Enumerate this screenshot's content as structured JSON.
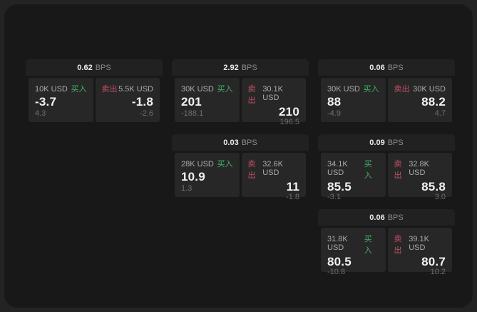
{
  "labels": {
    "buy": "买入",
    "sell": "卖出",
    "bps": "BPS"
  },
  "colors": {
    "buy": "#3fb269",
    "sell": "#c25064",
    "panel_bg": "#272727",
    "header_bg": "#212121",
    "app_bg": "#181818"
  },
  "cards": [
    {
      "col": 1,
      "row": 1,
      "bps": "0.62",
      "buy": {
        "size": "10K USD",
        "value": "-3.7",
        "sub": "4.3"
      },
      "sell": {
        "size": "5.5K USD",
        "value": "-1.8",
        "sub": "-2.6"
      }
    },
    {
      "col": 2,
      "row": 1,
      "bps": "2.92",
      "buy": {
        "size": "30K USD",
        "value": "201",
        "sub": "-188.1"
      },
      "sell": {
        "size": "30.1K USD",
        "value": "210",
        "sub": "196.5"
      }
    },
    {
      "col": 3,
      "row": 1,
      "bps": "0.06",
      "buy": {
        "size": "30K USD",
        "value": "88",
        "sub": "-4.9"
      },
      "sell": {
        "size": "30K USD",
        "value": "88.2",
        "sub": "4.7"
      }
    },
    {
      "col": 2,
      "row": 2,
      "bps": "0.03",
      "buy": {
        "size": "28K USD",
        "value": "10.9",
        "sub": "1.3"
      },
      "sell": {
        "size": "32.6K USD",
        "value": "11",
        "sub": "-1.8"
      }
    },
    {
      "col": 3,
      "row": 2,
      "bps": "0.09",
      "buy": {
        "size": "34.1K USD",
        "value": "85.5",
        "sub": "-3.1"
      },
      "sell": {
        "size": "32.8K USD",
        "value": "85.8",
        "sub": "3.0"
      }
    },
    {
      "col": 3,
      "row": 3,
      "bps": "0.06",
      "buy": {
        "size": "31.8K USD",
        "value": "80.5",
        "sub": "-10.8"
      },
      "sell": {
        "size": "39.1K USD",
        "value": "80.7",
        "sub": "10.2"
      }
    }
  ]
}
